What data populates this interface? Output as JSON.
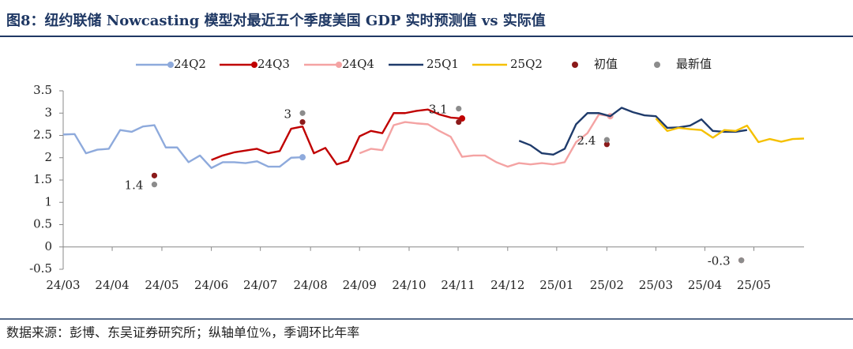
{
  "chart_data": {
    "type": "line",
    "title": "图8：纽约联储 Nowcasting 模型对最近五个季度美国 GDP 实时预测值 vs 实际值",
    "source": "数据来源：彭博、东吴证券研究所；纵轴单位%，季调环比年率",
    "xlim": [
      0,
      65
    ],
    "xticks": [
      {
        "value": 0,
        "label": "24/03"
      },
      {
        "value": 4.3,
        "label": "24/04"
      },
      {
        "value": 8.66,
        "label": "24/05"
      },
      {
        "value": 13.0,
        "label": "24/06"
      },
      {
        "value": 17.3,
        "label": "24/07"
      },
      {
        "value": 21.7,
        "label": "24/08"
      },
      {
        "value": 26.0,
        "label": "24/09"
      },
      {
        "value": 30.35,
        "label": "24/10"
      },
      {
        "value": 34.65,
        "label": "24/11"
      },
      {
        "value": 39.0,
        "label": "24/12"
      },
      {
        "value": 43.3,
        "label": "25/01"
      },
      {
        "value": 47.7,
        "label": "25/02"
      },
      {
        "value": 52.0,
        "label": "25/03"
      },
      {
        "value": 56.3,
        "label": "25/04"
      },
      {
        "value": 60.6,
        "label": "25/05"
      }
    ],
    "ylim": [
      -0.5,
      3.5
    ],
    "yticks": [
      -0.5,
      0,
      0.5,
      1,
      1.5,
      2,
      2.5,
      3,
      3.5
    ],
    "series": [
      {
        "name": "24Q2",
        "color": "#8eaadc",
        "type": "line",
        "marker": true,
        "x": [
          0,
          1,
          2,
          3,
          4,
          5,
          6,
          7,
          8,
          9,
          10,
          11,
          12,
          13,
          14,
          15,
          16,
          17,
          18,
          19,
          20,
          21
        ],
        "values": [
          2.52,
          2.53,
          2.1,
          2.18,
          2.2,
          2.62,
          2.58,
          2.7,
          2.73,
          2.23,
          2.23,
          1.9,
          2.05,
          1.77,
          1.9,
          1.9,
          1.88,
          1.92,
          1.8,
          1.8,
          2.0,
          2.01
        ]
      },
      {
        "name": "24Q3",
        "color": "#c00000",
        "type": "line",
        "marker": true,
        "x": [
          13,
          14,
          15,
          16,
          17,
          18,
          19,
          20,
          21,
          22,
          23,
          24,
          25,
          26,
          27,
          28,
          29,
          30,
          31,
          32,
          33,
          34,
          35
        ],
        "values": [
          1.95,
          2.05,
          2.12,
          2.16,
          2.2,
          2.1,
          2.15,
          2.65,
          2.7,
          2.1,
          2.22,
          1.85,
          1.93,
          2.48,
          2.6,
          2.55,
          3.0,
          3.0,
          3.05,
          3.08,
          2.97,
          2.9,
          2.88
        ]
      },
      {
        "name": "24Q4",
        "color": "#f4a3a3",
        "type": "line",
        "marker": true,
        "x": [
          26,
          27,
          28,
          29,
          30,
          31,
          32,
          33,
          34,
          35,
          36,
          37,
          38,
          39,
          40,
          41,
          42,
          43,
          44,
          45,
          46,
          47,
          48
        ],
        "values": [
          2.1,
          2.2,
          2.17,
          2.73,
          2.8,
          2.77,
          2.75,
          2.6,
          2.47,
          2.02,
          2.05,
          2.05,
          1.9,
          1.8,
          1.88,
          1.85,
          1.88,
          1.85,
          1.9,
          2.35,
          2.55,
          2.97,
          2.93
        ]
      },
      {
        "name": "25Q1",
        "color": "#1f3b6b",
        "type": "line",
        "marker": false,
        "x": [
          40,
          41,
          42,
          43,
          44,
          45,
          46,
          47,
          48,
          49,
          50,
          51,
          52,
          53,
          54,
          55,
          56,
          57,
          58,
          59,
          60
        ],
        "values": [
          2.38,
          2.28,
          2.1,
          2.07,
          2.2,
          2.75,
          3.0,
          3.0,
          2.93,
          3.12,
          3.02,
          2.95,
          2.93,
          2.67,
          2.68,
          2.72,
          2.86,
          2.6,
          2.58,
          2.58,
          2.62
        ]
      },
      {
        "name": "25Q2",
        "color": "#f5c000",
        "type": "line",
        "marker": false,
        "x": [
          52,
          53,
          54,
          55,
          56,
          57,
          58,
          59,
          60,
          61,
          62,
          63,
          64,
          65
        ],
        "values": [
          2.88,
          2.6,
          2.67,
          2.64,
          2.62,
          2.45,
          2.62,
          2.6,
          2.72,
          2.35,
          2.42,
          2.36,
          2.42,
          2.43
        ]
      },
      {
        "name": "初值",
        "color": "#8b1a1a",
        "type": "scatter",
        "x": [
          8,
          21,
          34.7,
          47.7,
          59.5
        ],
        "values": [
          1.6,
          2.8,
          2.8,
          2.3,
          -0.3
        ]
      },
      {
        "name": "最新值",
        "color": "#8c8c8c",
        "type": "scatter",
        "labels": true,
        "x": [
          8,
          21,
          34.7,
          47.7,
          59.5
        ],
        "values": [
          1.4,
          3,
          3.1,
          2.4,
          -0.3
        ]
      }
    ]
  }
}
